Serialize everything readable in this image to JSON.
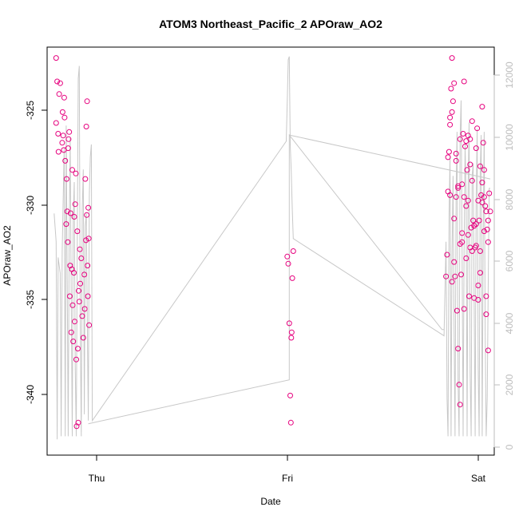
{
  "chart_data": {
    "type": "scatter",
    "title": "ATOM3 Northeast_Pacific_2 APOraw_AO2",
    "xlabel": "Date",
    "ylabel": "APOraw_AO2",
    "x_ticks": [
      "Thu",
      "Fri",
      "Sat"
    ],
    "y_ticks": [
      "-325",
      "-330",
      "-335",
      "-340"
    ],
    "y2_ticks": [
      "0",
      "2000",
      "4000",
      "6000",
      "8000",
      "10000",
      "12000"
    ],
    "xlim": [
      -0.205,
      2.02
    ],
    "ylim": [
      -344.3,
      -321.7
    ],
    "y2lim": [
      -300,
      12700
    ],
    "colors": {
      "points": "#e6007e",
      "line": "#c8c8c8",
      "axis": "#000000",
      "right_axis": "#bdbdbd"
    },
    "series": [
      {
        "kind": "points",
        "x": [
          -0.16,
          -0.16,
          -0.155,
          -0.15,
          -0.148,
          -0.145,
          -0.14,
          -0.13,
          -0.128,
          -0.125,
          -0.122,
          -0.12,
          -0.118,
          -0.115,
          -0.11,
          -0.108,
          -0.105,
          -0.102,
          -0.1,
          -0.098,
          -0.095,
          -0.092,
          -0.09,
          -0.088,
          -0.085,
          -0.082,
          -0.08,
          -0.078,
          -0.075,
          -0.072,
          -0.07,
          -0.068,
          -0.065,
          -0.062,
          -0.06,
          -0.058,
          -0.055,
          -0.052,
          -0.05,
          -0.048,
          -0.045,
          -0.042,
          -0.04,
          -0.035,
          -0.03,
          -0.025,
          -0.02,
          -0.018,
          -0.015,
          -0.012,
          -0.01,
          -0.008,
          -0.006,
          -0.004,
          -0.002,
          0.0,
          0.002,
          0.004,
          0.99,
          0.995,
          1.0,
          1.005,
          1.008,
          1.01,
          1.012,
          1.015,
          1.02,
          1.78,
          1.785,
          1.79,
          1.795,
          1.8,
          1.805,
          1.81,
          1.815,
          1.82,
          1.825,
          1.83,
          1.835,
          1.84,
          1.845,
          1.85,
          1.855,
          1.86,
          1.865,
          1.87,
          1.875,
          1.88,
          1.885,
          1.89,
          1.895,
          1.9,
          1.905,
          1.91,
          1.915,
          1.92,
          1.925,
          1.93,
          1.935,
          1.94,
          1.945,
          1.95,
          1.955,
          1.96,
          1.965,
          1.97,
          1.975,
          1.98,
          1.985,
          1.99,
          1.995,
          2.0,
          1.79,
          1.8,
          1.81,
          1.82,
          1.83,
          1.84,
          1.85,
          1.86,
          1.87,
          1.88,
          1.89,
          1.9,
          1.91,
          1.92,
          1.93,
          1.94,
          1.95,
          1.96,
          1.97,
          1.98,
          1.99,
          1.8,
          1.82,
          1.84,
          1.86,
          1.88,
          1.9,
          1.92,
          1.94,
          1.96,
          1.98,
          1.81,
          1.83,
          1.85,
          1.87,
          1.89,
          1.91,
          1.93,
          1.95,
          1.97,
          1.99
        ],
        "y": [
          -322.3,
          -325.9,
          -323.6,
          -326.5,
          -327.5,
          -324.3,
          -323.7,
          -327.0,
          -325.3,
          -326.6,
          -327.4,
          -324.5,
          -325.6,
          -328.0,
          -331.5,
          -329.0,
          -330.8,
          -332.5,
          -327.3,
          -326.8,
          -326.4,
          -335.5,
          -333.8,
          -330.9,
          -337.5,
          -334.0,
          -328.5,
          -336.0,
          -338.0,
          -334.2,
          -331.1,
          -336.9,
          -330.4,
          -328.7,
          -339.0,
          -342.7,
          -331.9,
          -338.4,
          -342.5,
          -335.2,
          -335.8,
          -332.9,
          -334.8,
          -333.4,
          -336.6,
          -337.8,
          -334.3,
          -336.2,
          -329.0,
          -332.4,
          -326.1,
          -331.0,
          -324.7,
          -333.8,
          -335.5,
          -330.6,
          -332.3,
          -337.1,
          -333.3,
          -333.7,
          -337.0,
          -341.0,
          -342.5,
          -337.8,
          -337.5,
          -334.5,
          -333.0,
          -334.4,
          -333.2,
          -329.7,
          -327.5,
          -325.6,
          -324.0,
          -322.3,
          -324.7,
          -331.2,
          -334.4,
          -330.0,
          -336.3,
          -338.4,
          -340.4,
          -341.5,
          -334.3,
          -332.5,
          -326.5,
          -323.6,
          -327.2,
          -330.5,
          -328.5,
          -332.1,
          -335.5,
          -326.8,
          -331.7,
          -333.0,
          -331.3,
          -335.6,
          -332.8,
          -327.3,
          -326.2,
          -330.2,
          -331.3,
          -334.2,
          -329.9,
          -325.0,
          -327.0,
          -328.5,
          -330.5,
          -335.5,
          -331.8,
          -332.5,
          -329.8,
          -330.8,
          -327.8,
          -326.0,
          -325.3,
          -323.7,
          -327.6,
          -329.4,
          -326.8,
          -329.3,
          -336.2,
          -333.4,
          -330.2,
          -332.8,
          -325.8,
          -331.6,
          -332.7,
          -334.9,
          -328.3,
          -330.3,
          -331.9,
          -336.5,
          -338.5,
          -329.9,
          -333.6,
          -329.5,
          -332.0,
          -326.9,
          -328.2,
          -331.6,
          -335.7,
          -329.2,
          -330.8,
          -334.7,
          -328.0,
          -332.6,
          -330.0,
          -326.6,
          -329.1,
          -331.5,
          -333.0,
          -330.0,
          -331.3
        ]
      },
      {
        "kind": "line",
        "x": [
          -0.17,
          -0.16,
          -0.155,
          -0.15,
          -0.14,
          -0.135,
          -0.13,
          -0.12,
          -0.115,
          -0.11,
          -0.105,
          -0.1,
          -0.095,
          -0.09,
          -0.085,
          -0.08,
          -0.075,
          -0.07,
          -0.065,
          -0.06,
          -0.055,
          -0.05,
          -0.045,
          -0.04,
          -0.035,
          -0.03,
          -0.025,
          -0.02,
          -0.015,
          -0.01,
          -0.005,
          0.0,
          0.005,
          0.01,
          0.015,
          0.02,
          0.985,
          0.99,
          0.995,
          1.0,
          1.005,
          1.01,
          1.015,
          1.02,
          1.77,
          1.78,
          1.785,
          1.79,
          1.795,
          1.8,
          1.805,
          1.81,
          1.815,
          1.82,
          1.825,
          1.83,
          1.835,
          1.84,
          1.845,
          1.85,
          1.855,
          1.86,
          1.865,
          1.87,
          1.875,
          1.88,
          1.885,
          1.89,
          1.895,
          1.9,
          1.905,
          1.91,
          1.915,
          1.92,
          1.925,
          1.93,
          1.935,
          1.94,
          1.945,
          1.95,
          1.955,
          1.96,
          1.965,
          1.97,
          1.975,
          1.98,
          1.985,
          1.99,
          1.995,
          2.0
        ],
        "y2": [
          7400,
          6500,
          200,
          6000,
          5500,
          300,
          6200,
          9500,
          300,
          10200,
          5200,
          300,
          6800,
          9800,
          4800,
          300,
          7200,
          8400,
          2500,
          300,
          6600,
          11700,
          12100,
          3800,
          300,
          7500,
          8800,
          1000,
          7000,
          7400,
          4000,
          800,
          8000,
          9200,
          9600,
          800,
          9700,
          11000,
          12300,
          12400,
          9600,
          8700,
          7500,
          6600,
          3500,
          6500,
          1500,
          300,
          7300,
          9200,
          300,
          6000,
          8600,
          3700,
          300,
          8000,
          10000,
          2000,
          300,
          9800,
          11000,
          6300,
          300,
          6200,
          9600,
          7900,
          300,
          8300,
          10300,
          2300,
          300,
          8600,
          9000,
          4700,
          300,
          7800,
          10100,
          2500,
          300,
          8700,
          9900,
          300,
          6800,
          10000,
          3500,
          300,
          1500,
          5000,
          8200,
          8200
        ]
      },
      {
        "kind": "line",
        "x": [
          0.0,
          1.0,
          1.0,
          1.76,
          1.77
        ],
        "y2": [
          700,
          2100,
          9900,
          3700,
          3700
        ]
      },
      {
        "kind": "line",
        "x": [
          1.0,
          2.0
        ],
        "y2": [
          9900,
          8500
        ]
      }
    ]
  }
}
